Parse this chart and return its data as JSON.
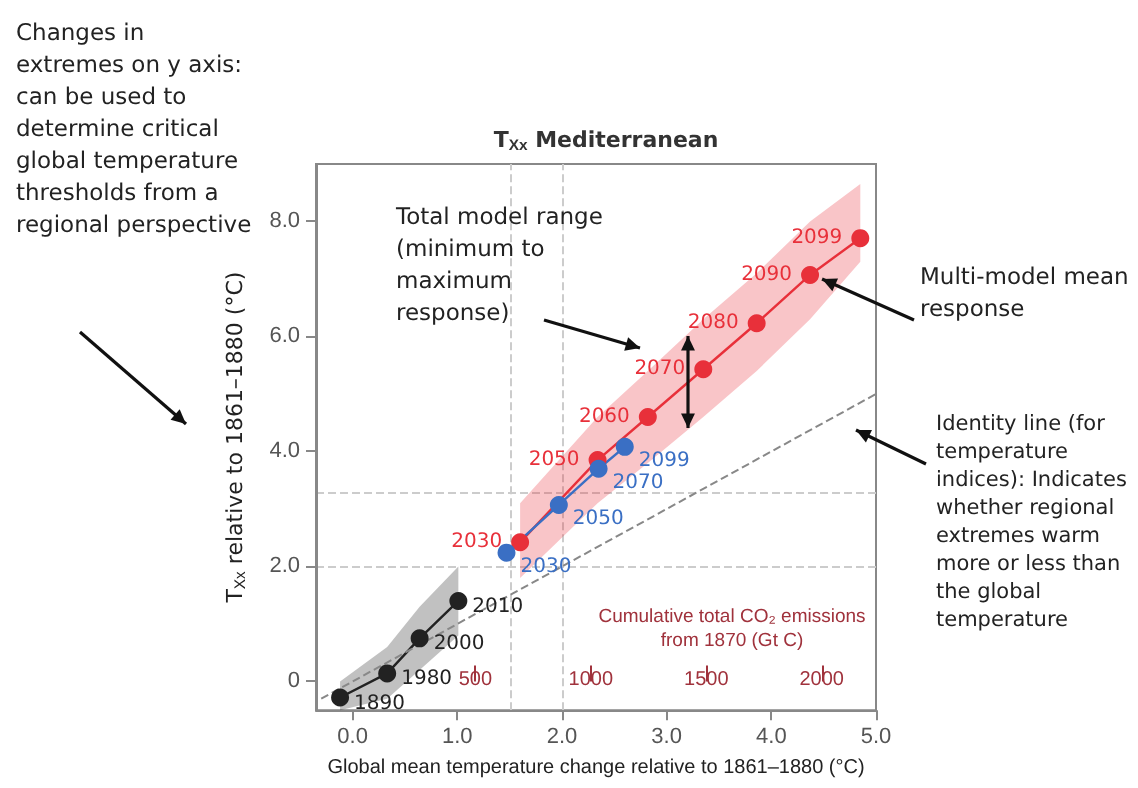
{
  "chart_data": {
    "type": "line",
    "title": "T$_{Xx}$ Mediterranean",
    "xlabel": "Global mean temperature change relative to 1861–1880 (°C)",
    "ylabel": "T$_{Xx}$ relative to 1861–1880 (°C)",
    "x2label": "Cumulative total CO₂ emissions from 1870 (Gt C)",
    "xlim": [
      -0.35,
      5.0
    ],
    "xticks": [
      {
        "value": 0,
        "label": "0.0"
      },
      {
        "value": 1,
        "label": "1.0"
      },
      {
        "value": 2,
        "label": "2.0"
      },
      {
        "value": 3,
        "label": "3.0"
      },
      {
        "value": 4,
        "label": "4.0"
      },
      {
        "value": 5,
        "label": "5.0"
      }
    ],
    "ylim": [
      -0.5,
      9.0
    ],
    "yticks": [
      0,
      {
        "value": 2,
        "label": "2.0"
      },
      {
        "value": 4,
        "label": "4.0"
      },
      {
        "value": 6,
        "label": "6.0"
      },
      {
        "value": 8,
        "label": "8.0"
      }
    ],
    "x2lim": [
      -190,
      2235
    ],
    "x2ticks": [
      500,
      1000,
      1500,
      2000
    ],
    "grid": false,
    "marker": "circle",
    "series": [
      {
        "color": "#222222",
        "x": [
          -0.12,
          0.33,
          0.64,
          1.01
        ],
        "values": [
          -0.28,
          0.14,
          0.75,
          1.4
        ],
        "lower": [
          -0.5,
          -0.3,
          0.2,
          0.8
        ],
        "upper": [
          0.0,
          0.6,
          1.3,
          2.0
        ]
      },
      {
        "color": "#e8303a",
        "x": [
          1.6,
          2.34,
          2.82,
          3.35,
          3.86,
          4.37,
          4.85
        ],
        "values": [
          2.42,
          3.85,
          4.6,
          5.43,
          6.23,
          7.07,
          7.71
        ],
        "lower": [
          1.8,
          3.1,
          3.8,
          4.6,
          5.4,
          6.3,
          7.3
        ],
        "upper": [
          3.1,
          4.6,
          5.4,
          6.3,
          7.1,
          8.0,
          8.65
        ]
      },
      {
        "color": "#3a6fc4",
        "x": [
          1.47,
          1.97,
          2.35,
          2.6
        ],
        "values": [
          2.24,
          3.07,
          3.7,
          4.08
        ]
      },
      {
        "color": "#888888",
        "marker": "none",
        "line_style": "dashed",
        "x": [
          -0.3,
          5.0
        ],
        "values": [
          -0.3,
          5.0
        ]
      }
    ],
    "ref_lines": [
      {
        "axis": "x",
        "value": 1.5,
        "color": "#cccccc",
        "line_style": "dashed"
      },
      {
        "axis": "x",
        "value": 2.0,
        "color": "#cccccc",
        "line_style": "dashed"
      },
      {
        "axis": "y",
        "value": 2.0,
        "color": "#cccccc",
        "line_style": "dashed"
      },
      {
        "axis": "y",
        "value": 3.3,
        "color": "#cccccc",
        "line_style": "dashed"
      }
    ],
    "annotations": [
      "Changes in extremes on y axis: can be used to determine critical global temperature thresholds from a regional perspective",
      "Total model range (minimum to maximum response)",
      {
        "text": "Multi-model mean response",
        "x": 4.37,
        "y": 7.07
      },
      "Identity line (for temperature indices): Indicates whether regional extremes warm more or less than the global temperature",
      {
        "text": "1890",
        "x": -0.12,
        "y": -0.28
      },
      {
        "text": "1980",
        "x": 0.33,
        "y": 0.14
      },
      {
        "text": "2000",
        "x": 0.64,
        "y": 0.75
      },
      {
        "text": "2010",
        "x": 1.01,
        "y": 1.4
      },
      {
        "text": "2030",
        "x": 1.6,
        "y": 2.42
      },
      {
        "text": "2050",
        "x": 2.34,
        "y": 3.85
      },
      {
        "text": "2060",
        "x": 2.82,
        "y": 4.6
      },
      {
        "text": "2070",
        "x": 3.35,
        "y": 5.43
      },
      {
        "text": "2080",
        "x": 3.86,
        "y": 6.23
      },
      {
        "text": "2090",
        "x": 4.37,
        "y": 7.07
      },
      {
        "text": "2099",
        "x": 4.85,
        "y": 7.71
      },
      {
        "text": "2030",
        "x": 1.47,
        "y": 2.24
      },
      {
        "text": "2050",
        "x": 1.97,
        "y": 3.07
      },
      {
        "text": "2070",
        "x": 2.35,
        "y": 3.7
      },
      {
        "text": "2099",
        "x": 2.6,
        "y": 4.08
      }
    ]
  }
}
